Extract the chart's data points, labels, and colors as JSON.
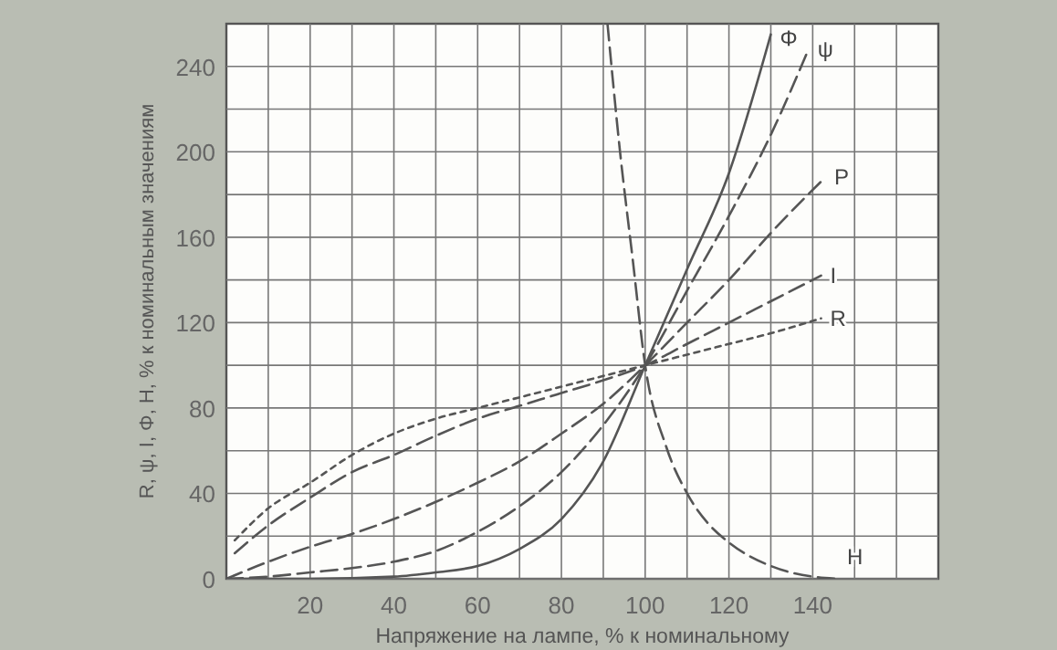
{
  "chart_data": {
    "type": "line",
    "xlabel": "Напряжение на лампе, % к номинальному",
    "ylabel": "R, ψ, I, Φ, H, % к номинальным значениям",
    "xlim": [
      0,
      170
    ],
    "ylim": [
      0,
      260
    ],
    "xticks": [
      {
        "value": 10,
        "label": null
      },
      20,
      {
        "value": 30,
        "label": null
      },
      40,
      {
        "value": 50,
        "label": null
      },
      60,
      {
        "value": 70,
        "label": null
      },
      80,
      {
        "value": 90,
        "label": null
      },
      100,
      {
        "value": 110,
        "label": null
      },
      120,
      {
        "value": 130,
        "label": null
      },
      140,
      {
        "value": 150,
        "label": null
      },
      {
        "value": 160,
        "label": null
      }
    ],
    "yticks": [
      0,
      {
        "value": 20,
        "label": null
      },
      40,
      {
        "value": 60,
        "label": null
      },
      80,
      {
        "value": 100,
        "label": null
      },
      120,
      {
        "value": 140,
        "label": null
      },
      160,
      {
        "value": 180,
        "label": null
      },
      200,
      {
        "value": 220,
        "label": null
      },
      240
    ],
    "grid": true,
    "marker": "none",
    "series": [
      {
        "name": "R",
        "color": "#555555",
        "line_style": "dotted",
        "x": [
          2,
          10,
          20,
          30,
          40,
          50,
          60,
          70,
          80,
          90,
          100,
          110,
          120,
          130,
          142
        ],
        "values": [
          18,
          33,
          45,
          58,
          68,
          75,
          80,
          85,
          90,
          95,
          100,
          105,
          110,
          115,
          122
        ]
      },
      {
        "name": "I",
        "color": "#555555",
        "line_style": "dashed",
        "x": [
          2,
          10,
          20,
          30,
          40,
          50,
          60,
          70,
          80,
          90,
          100,
          110,
          120,
          130,
          142
        ],
        "values": [
          12,
          25,
          38,
          50,
          58,
          67,
          75,
          81,
          87,
          93,
          100,
          110,
          120,
          130,
          142
        ]
      },
      {
        "name": "P",
        "color": "#555555",
        "line_style": "dashed",
        "x": [
          0,
          10,
          20,
          30,
          40,
          50,
          60,
          70,
          80,
          90,
          100,
          110,
          120,
          130,
          143
        ],
        "values": [
          0,
          8,
          15,
          21,
          28,
          36,
          45,
          55,
          68,
          82,
          100,
          120,
          140,
          162,
          188
        ]
      },
      {
        "name": "ψ",
        "color": "#555555",
        "line_style": "dashed",
        "x": [
          0,
          10,
          20,
          30,
          40,
          50,
          60,
          70,
          80,
          90,
          100,
          110,
          120,
          130,
          139
        ],
        "values": [
          0,
          1,
          3,
          5,
          8,
          13,
          22,
          34,
          50,
          72,
          100,
          135,
          170,
          208,
          248
        ]
      },
      {
        "name": "Φ",
        "color": "#555555",
        "line_style": "solid",
        "x": [
          0,
          20,
          40,
          50,
          60,
          70,
          80,
          90,
          100,
          110,
          120,
          130
        ],
        "values": [
          0,
          0,
          1,
          3,
          6,
          14,
          28,
          55,
          100,
          145,
          190,
          255
        ]
      },
      {
        "name": "H",
        "color": "#555555",
        "line_style": "dashed",
        "x": [
          91,
          94,
          97,
          100,
          105,
          110,
          115,
          120,
          130,
          140,
          146
        ],
        "values": [
          260,
          200,
          150,
          100,
          62,
          40,
          26,
          17,
          6,
          1,
          0
        ]
      }
    ]
  }
}
